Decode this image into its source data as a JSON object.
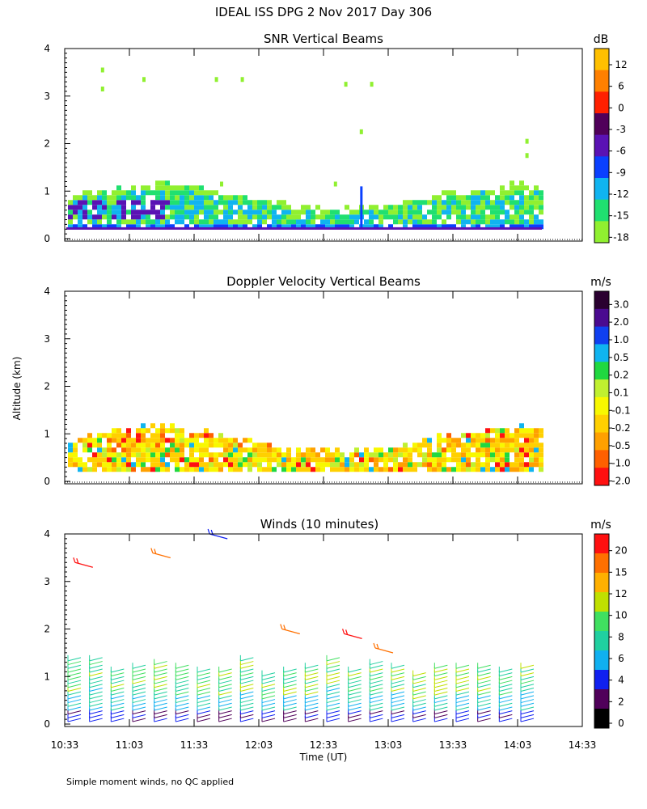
{
  "header": {
    "title": "IDEAL ISS DPG    2 Nov 2017 Day 306"
  },
  "footer": {
    "note": "Simple moment winds, no QC applied"
  },
  "axes": {
    "ylabel": "Altitude (km)",
    "xlabel": "Time (UT)",
    "ylim": [
      0,
      4
    ],
    "yticks": [
      "0",
      "1",
      "2",
      "3",
      "4"
    ],
    "xticks": [
      "10:33",
      "11:03",
      "11:33",
      "12:03",
      "12:33",
      "13:03",
      "13:33",
      "14:03",
      "14:33"
    ]
  },
  "chart_data": [
    {
      "type": "heatmap",
      "title": "SNR Vertical Beams",
      "units": "dB",
      "colorbar_labels": [
        "12",
        "6",
        "0",
        "-3",
        "-6",
        "-9",
        "-12",
        "-15",
        "-18"
      ],
      "colorbar_colors": [
        "#ffc000",
        "#ff8000",
        "#ff2000",
        "#50005a",
        "#5a12b4",
        "#0a40ff",
        "#10b4f0",
        "#20e070",
        "#90f030"
      ],
      "data_top_km_approx": 1.0,
      "data_time_end": "14:15"
    },
    {
      "type": "heatmap",
      "title": "Doppler Velocity Vertical Beams",
      "units": "m/s",
      "colorbar_labels": [
        "3.0",
        "2.0",
        "1.0",
        "0.5",
        "0.2",
        "0.1",
        "-0.1",
        "-0.2",
        "-0.5",
        "-1.0",
        "-2.0"
      ],
      "colorbar_colors": [
        "#2a0030",
        "#4a0a90",
        "#1040f0",
        "#10b4f0",
        "#20d840",
        "#c0f030",
        "#f8f800",
        "#ffd000",
        "#ffa000",
        "#ff6000",
        "#ff1010"
      ],
      "data_top_km_approx": 1.0,
      "data_time_end": "14:15"
    },
    {
      "type": "scatter",
      "title": "Winds (10 minutes)",
      "units": "m/s",
      "colorbar_labels": [
        "20",
        "15",
        "12",
        "10",
        "8",
        "6",
        "4",
        "2",
        "0"
      ],
      "colorbar_colors": [
        "#ff1010",
        "#ff7000",
        "#ffb000",
        "#c0e000",
        "#40e060",
        "#20d0a0",
        "#10b0f0",
        "#1020f0",
        "#50005a",
        "#000000"
      ],
      "barb_columns_time_range": [
        "10:33",
        "14:03"
      ],
      "barb_altitude_range_km": [
        0.0,
        1.4
      ],
      "sparse_upper_barbs_km": [
        3.4,
        3.6,
        4.0,
        2.0,
        1.9,
        1.6
      ]
    }
  ]
}
